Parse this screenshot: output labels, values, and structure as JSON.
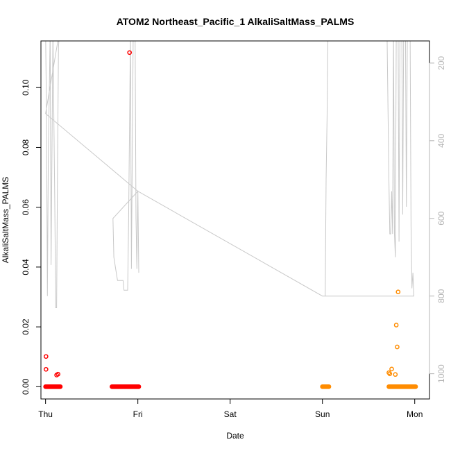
{
  "chart_data": {
    "type": "scatter",
    "title": "ATOM2 Northeast_Pacific_1 AlkaliSaltMass_PALMS",
    "xlabel": "Date",
    "ylabel": "AlkaliSaltMass_PALMS",
    "xlim": [
      -0.05,
      4.16
    ],
    "ylim": [
      -0.0041,
      0.1156
    ],
    "x_ticks": [
      {
        "value": 0,
        "label": "Thu"
      },
      {
        "value": 1,
        "label": "Fri"
      },
      {
        "value": 2,
        "label": "Sat"
      },
      {
        "value": 3,
        "label": "Sun"
      },
      {
        "value": 4,
        "label": "Mon"
      }
    ],
    "y_ticks": [
      {
        "value": 0.0,
        "label": "0.00"
      },
      {
        "value": 0.02,
        "label": "0.02"
      },
      {
        "value": 0.04,
        "label": "0.04"
      },
      {
        "value": 0.06,
        "label": "0.06"
      },
      {
        "value": 0.08,
        "label": "0.08"
      },
      {
        "value": 0.1,
        "label": "0.10"
      }
    ],
    "y2_range": [
      1065,
      143
    ],
    "y2_ticks": [
      {
        "value": 200,
        "label": "200"
      },
      {
        "value": 400,
        "label": "400"
      },
      {
        "value": 600,
        "label": "600"
      },
      {
        "value": 800,
        "label": "800"
      },
      {
        "value": 1000,
        "label": "1000"
      }
    ],
    "grid": false,
    "colors": {
      "series_red": "#ff0000",
      "series_orange": "#ff8c00",
      "altitude_line": "#c8c8c8",
      "right_axis": "#b4b4b4"
    },
    "series": [
      {
        "color": "#ff0000",
        "clusters": [
          {
            "x_start": 0.0,
            "x_end": 0.16,
            "y": 0.0,
            "count": 36
          },
          {
            "x_start": 0.72,
            "x_end": 1.01,
            "y": 0.0,
            "count": 64
          }
        ],
        "points": [
          {
            "x": 0.005,
            "y": 0.0101
          },
          {
            "x": 0.005,
            "y": 0.0058
          },
          {
            "x": 0.12,
            "y": 0.0039
          },
          {
            "x": 0.135,
            "y": 0.0042
          },
          {
            "x": 0.91,
            "y": 0.1117
          }
        ]
      },
      {
        "color": "#ff8c00",
        "clusters": [
          {
            "x_start": 3.0,
            "x_end": 3.07,
            "y": 0.0,
            "count": 12
          },
          {
            "x_start": 3.72,
            "x_end": 4.01,
            "y": 0.0,
            "count": 64
          }
        ],
        "points": [
          {
            "x": 3.72,
            "y": 0.0047
          },
          {
            "x": 3.73,
            "y": 0.0043
          },
          {
            "x": 3.75,
            "y": 0.0059
          },
          {
            "x": 3.79,
            "y": 0.0041
          },
          {
            "x": 3.8,
            "y": 0.0206
          },
          {
            "x": 3.81,
            "y": 0.0133
          },
          {
            "x": 3.82,
            "y": 0.0317
          }
        ]
      }
    ],
    "altitude_path": [
      [
        0.0,
        120
      ],
      [
        0.01,
        330
      ],
      [
        0.02,
        800
      ],
      [
        0.03,
        450
      ],
      [
        0.05,
        120
      ],
      [
        0.06,
        720
      ],
      [
        0.08,
        120
      ],
      [
        0.1,
        570
      ],
      [
        0.11,
        830
      ],
      [
        0.12,
        830
      ],
      [
        0.13,
        470
      ],
      [
        0.14,
        160
      ],
      [
        0.15,
        120
      ],
      [
        0.0,
        330
      ],
      [
        1.0,
        530
      ],
      [
        1.01,
        740
      ],
      [
        1.0,
        530
      ],
      [
        0.73,
        600
      ],
      [
        0.74,
        700
      ],
      [
        0.76,
        730
      ],
      [
        0.78,
        760
      ],
      [
        0.84,
        760
      ],
      [
        0.85,
        785
      ],
      [
        0.89,
        785
      ],
      [
        0.9,
        600
      ],
      [
        0.92,
        120
      ],
      [
        0.93,
        730
      ],
      [
        0.95,
        120
      ],
      [
        0.97,
        120
      ],
      [
        0.98,
        600
      ],
      [
        0.99,
        730
      ],
      [
        1.0,
        530
      ],
      [
        3.0,
        800
      ],
      [
        3.03,
        800
      ],
      [
        3.04,
        500
      ],
      [
        3.05,
        340
      ],
      [
        3.06,
        120
      ],
      [
        3.7,
        120
      ],
      [
        3.72,
        500
      ],
      [
        3.73,
        640
      ],
      [
        3.74,
        640
      ],
      [
        3.75,
        530
      ],
      [
        3.76,
        640
      ],
      [
        3.77,
        120
      ],
      [
        3.78,
        640
      ],
      [
        3.79,
        700
      ],
      [
        3.8,
        120
      ],
      [
        3.82,
        120
      ],
      [
        3.83,
        660
      ],
      [
        3.84,
        120
      ],
      [
        3.86,
        120
      ],
      [
        3.87,
        590
      ],
      [
        3.88,
        120
      ],
      [
        3.9,
        120
      ],
      [
        3.91,
        570
      ],
      [
        3.92,
        120
      ],
      [
        3.95,
        120
      ],
      [
        3.96,
        620
      ],
      [
        3.97,
        780
      ],
      [
        3.98,
        740
      ],
      [
        3.99,
        800
      ],
      [
        3.0,
        800
      ]
    ]
  }
}
